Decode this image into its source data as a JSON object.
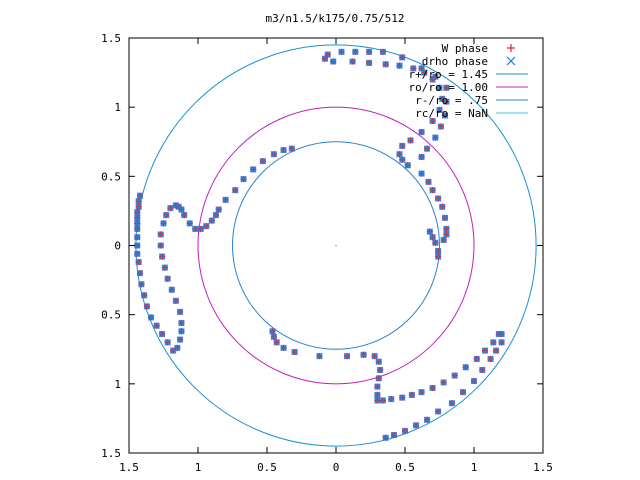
{
  "chart_data": {
    "type": "scatter",
    "title": "m3/n1.5/k175/0.75/512",
    "xlim": [
      -1.5,
      1.5
    ],
    "ylim": [
      -1.5,
      1.5
    ],
    "x_ticks": [
      -1.5,
      -1,
      -0.5,
      0,
      0.5,
      1,
      1.5
    ],
    "y_ticks": [
      -1.5,
      -1,
      -0.5,
      0,
      0.5,
      1,
      1.5
    ],
    "x_tick_labels": [
      "1.5",
      "1",
      "0.5",
      "0",
      "0.5",
      "1",
      "1.5"
    ],
    "y_tick_labels": [
      "1.5",
      "1",
      "0.5",
      "0",
      "0.5",
      "1",
      "1.5"
    ],
    "legend_position": "top-right",
    "legend": [
      {
        "label": "W phase",
        "marker": "+",
        "color": "#e0202a"
      },
      {
        "label": "drho phase",
        "marker": "x",
        "color": "#1f7fe0"
      },
      {
        "label": "r+/ro = 1.45",
        "marker": "line",
        "color": "#1a8fd4"
      },
      {
        "label": "ro/ro = 1.00",
        "marker": "line",
        "color": "#c020c0"
      },
      {
        "label": "r-/ro = .75",
        "marker": "line",
        "color": "#3080d0"
      },
      {
        "label": "rc/ro = NaN",
        "marker": "line",
        "color": "#40c0e0"
      }
    ],
    "circles": [
      {
        "r": 1.45,
        "color": "#1a8fd4"
      },
      {
        "r": 1.0,
        "color": "#c020c0"
      },
      {
        "r": 0.75,
        "color": "#3080d0"
      }
    ],
    "series": [
      {
        "name": "W phase",
        "points": [
          [
            -1.42,
            0.36
          ],
          [
            -1.43,
            0.32
          ],
          [
            -1.43,
            0.28
          ],
          [
            -1.44,
            0.24
          ],
          [
            -1.44,
            0.2
          ],
          [
            -1.44,
            0.16
          ],
          [
            -1.44,
            0.12
          ],
          [
            -1.44,
            0.06
          ],
          [
            -1.44,
            0.0
          ],
          [
            -1.44,
            -0.06
          ],
          [
            -1.43,
            -0.12
          ],
          [
            -1.42,
            -0.2
          ],
          [
            -1.41,
            -0.28
          ],
          [
            -1.39,
            -0.36
          ],
          [
            -1.37,
            -0.44
          ],
          [
            -1.34,
            -0.52
          ],
          [
            -1.3,
            -0.58
          ],
          [
            -1.26,
            -0.64
          ],
          [
            -1.22,
            -0.7
          ],
          [
            -1.18,
            -0.76
          ],
          [
            -1.14,
            0.28
          ],
          [
            -1.12,
            0.26
          ],
          [
            -1.1,
            0.22
          ],
          [
            -1.06,
            0.16
          ],
          [
            -1.02,
            0.12
          ],
          [
            -0.98,
            0.12
          ],
          [
            -0.94,
            0.14
          ],
          [
            -0.9,
            0.18
          ],
          [
            -0.87,
            0.22
          ],
          [
            -0.85,
            0.26
          ],
          [
            -0.8,
            0.33
          ],
          [
            -0.73,
            0.4
          ],
          [
            -0.67,
            0.48
          ],
          [
            -0.6,
            0.55
          ],
          [
            -0.53,
            0.61
          ],
          [
            -0.45,
            0.66
          ],
          [
            -0.38,
            0.69
          ],
          [
            -0.32,
            0.7
          ],
          [
            -1.16,
            0.29
          ],
          [
            -1.2,
            0.27
          ],
          [
            -1.23,
            0.22
          ],
          [
            -1.25,
            0.16
          ],
          [
            -1.27,
            0.08
          ],
          [
            -1.27,
            0.0
          ],
          [
            -1.26,
            -0.08
          ],
          [
            -1.24,
            -0.16
          ],
          [
            -1.22,
            -0.24
          ],
          [
            -1.19,
            -0.32
          ],
          [
            -1.16,
            -0.4
          ],
          [
            -1.13,
            -0.48
          ],
          [
            -1.12,
            -0.56
          ],
          [
            -1.12,
            -0.62
          ],
          [
            -1.13,
            -0.68
          ],
          [
            -1.15,
            -0.74
          ],
          [
            -0.46,
            -0.62
          ],
          [
            -0.45,
            -0.66
          ],
          [
            -0.43,
            -0.7
          ],
          [
            -0.38,
            -0.74
          ],
          [
            -0.3,
            -0.77
          ],
          [
            -0.12,
            -0.8
          ],
          [
            0.08,
            -0.8
          ],
          [
            0.2,
            -0.79
          ],
          [
            0.28,
            -0.8
          ],
          [
            0.31,
            -0.84
          ],
          [
            0.32,
            -0.9
          ],
          [
            0.31,
            -0.96
          ],
          [
            0.3,
            -1.02
          ],
          [
            0.3,
            -1.08
          ],
          [
            0.3,
            -1.12
          ],
          [
            0.34,
            -1.12
          ],
          [
            0.4,
            -1.11
          ],
          [
            0.48,
            -1.1
          ],
          [
            0.55,
            -1.08
          ],
          [
            0.62,
            -1.06
          ],
          [
            0.7,
            -1.03
          ],
          [
            0.78,
            -0.99
          ],
          [
            0.86,
            -0.94
          ],
          [
            0.94,
            -0.88
          ],
          [
            1.02,
            -0.82
          ],
          [
            1.08,
            -0.76
          ],
          [
            1.14,
            -0.7
          ],
          [
            1.18,
            -0.64
          ],
          [
            1.2,
            -0.64
          ],
          [
            1.2,
            -0.7
          ],
          [
            1.16,
            -0.76
          ],
          [
            1.12,
            -0.82
          ],
          [
            1.06,
            -0.9
          ],
          [
            1.0,
            -0.98
          ],
          [
            0.92,
            -1.06
          ],
          [
            0.84,
            -1.14
          ],
          [
            0.74,
            -1.2
          ],
          [
            0.66,
            -1.26
          ],
          [
            0.58,
            -1.3
          ],
          [
            0.5,
            -1.34
          ],
          [
            0.42,
            -1.37
          ],
          [
            0.36,
            -1.39
          ],
          [
            0.78,
            0.04
          ],
          [
            0.8,
            0.08
          ],
          [
            0.8,
            0.12
          ],
          [
            0.79,
            0.2
          ],
          [
            0.77,
            0.28
          ],
          [
            0.74,
            0.34
          ],
          [
            0.7,
            0.4
          ],
          [
            0.67,
            0.46
          ],
          [
            0.62,
            0.52
          ],
          [
            0.52,
            0.58
          ],
          [
            0.48,
            0.62
          ],
          [
            0.46,
            0.66
          ],
          [
            0.48,
            0.72
          ],
          [
            0.54,
            0.76
          ],
          [
            0.62,
            0.82
          ],
          [
            0.7,
            0.9
          ],
          [
            0.75,
            0.98
          ],
          [
            0.77,
            1.06
          ],
          [
            0.75,
            1.14
          ],
          [
            0.7,
            1.2
          ],
          [
            0.64,
            1.25
          ],
          [
            0.56,
            1.28
          ],
          [
            0.46,
            1.3
          ],
          [
            0.36,
            1.31
          ],
          [
            0.24,
            1.32
          ],
          [
            0.12,
            1.33
          ],
          [
            -0.02,
            1.33
          ],
          [
            -0.08,
            1.35
          ],
          [
            -0.06,
            1.38
          ],
          [
            0.04,
            1.4
          ],
          [
            0.14,
            1.4
          ],
          [
            0.24,
            1.4
          ],
          [
            0.34,
            1.4
          ],
          [
            0.48,
            1.36
          ],
          [
            0.62,
            1.28
          ],
          [
            0.72,
            1.22
          ],
          [
            0.8,
            1.14
          ],
          [
            0.8,
            1.04
          ],
          [
            0.79,
            0.94
          ],
          [
            0.76,
            0.86
          ],
          [
            0.72,
            0.78
          ],
          [
            0.66,
            0.7
          ],
          [
            0.62,
            0.64
          ],
          [
            0.74,
            -0.08
          ],
          [
            0.74,
            -0.04
          ],
          [
            0.72,
            0.02
          ],
          [
            0.7,
            0.06
          ],
          [
            0.68,
            0.1
          ]
        ]
      },
      {
        "name": "drho phase",
        "points": [
          [
            -1.42,
            0.36
          ],
          [
            -1.43,
            0.32
          ],
          [
            -1.43,
            0.28
          ],
          [
            -1.44,
            0.24
          ],
          [
            -1.44,
            0.2
          ],
          [
            -1.44,
            0.16
          ],
          [
            -1.44,
            0.12
          ],
          [
            -1.44,
            0.06
          ],
          [
            -1.44,
            0.0
          ],
          [
            -1.44,
            -0.06
          ],
          [
            -1.43,
            -0.12
          ],
          [
            -1.42,
            -0.2
          ],
          [
            -1.41,
            -0.28
          ],
          [
            -1.39,
            -0.36
          ],
          [
            -1.37,
            -0.44
          ],
          [
            -1.34,
            -0.52
          ],
          [
            -1.3,
            -0.58
          ],
          [
            -1.26,
            -0.64
          ],
          [
            -1.22,
            -0.7
          ],
          [
            -1.18,
            -0.76
          ],
          [
            -1.14,
            0.28
          ],
          [
            -1.12,
            0.26
          ],
          [
            -1.1,
            0.22
          ],
          [
            -1.06,
            0.16
          ],
          [
            -1.02,
            0.12
          ],
          [
            -0.98,
            0.12
          ],
          [
            -0.94,
            0.14
          ],
          [
            -0.9,
            0.18
          ],
          [
            -0.87,
            0.22
          ],
          [
            -0.85,
            0.26
          ],
          [
            -0.8,
            0.33
          ],
          [
            -0.73,
            0.4
          ],
          [
            -0.67,
            0.48
          ],
          [
            -0.6,
            0.55
          ],
          [
            -0.53,
            0.61
          ],
          [
            -0.45,
            0.66
          ],
          [
            -0.38,
            0.69
          ],
          [
            -0.32,
            0.7
          ],
          [
            -1.16,
            0.29
          ],
          [
            -1.2,
            0.27
          ],
          [
            -1.23,
            0.22
          ],
          [
            -1.25,
            0.16
          ],
          [
            -1.27,
            0.08
          ],
          [
            -1.27,
            0.0
          ],
          [
            -1.26,
            -0.08
          ],
          [
            -1.24,
            -0.16
          ],
          [
            -1.22,
            -0.24
          ],
          [
            -1.19,
            -0.32
          ],
          [
            -1.16,
            -0.4
          ],
          [
            -1.13,
            -0.48
          ],
          [
            -1.12,
            -0.56
          ],
          [
            -1.12,
            -0.62
          ],
          [
            -1.13,
            -0.68
          ],
          [
            -1.15,
            -0.74
          ],
          [
            -0.46,
            -0.62
          ],
          [
            -0.45,
            -0.66
          ],
          [
            -0.43,
            -0.7
          ],
          [
            -0.38,
            -0.74
          ],
          [
            -0.3,
            -0.77
          ],
          [
            -0.12,
            -0.8
          ],
          [
            0.08,
            -0.8
          ],
          [
            0.2,
            -0.79
          ],
          [
            0.28,
            -0.8
          ],
          [
            0.31,
            -0.84
          ],
          [
            0.32,
            -0.9
          ],
          [
            0.31,
            -0.96
          ],
          [
            0.3,
            -1.02
          ],
          [
            0.3,
            -1.08
          ],
          [
            0.3,
            -1.12
          ],
          [
            0.34,
            -1.12
          ],
          [
            0.4,
            -1.11
          ],
          [
            0.48,
            -1.1
          ],
          [
            0.55,
            -1.08
          ],
          [
            0.62,
            -1.06
          ],
          [
            0.7,
            -1.03
          ],
          [
            0.78,
            -0.99
          ],
          [
            0.86,
            -0.94
          ],
          [
            0.94,
            -0.88
          ],
          [
            1.02,
            -0.82
          ],
          [
            1.08,
            -0.76
          ],
          [
            1.14,
            -0.7
          ],
          [
            1.18,
            -0.64
          ],
          [
            1.2,
            -0.64
          ],
          [
            1.2,
            -0.7
          ],
          [
            1.16,
            -0.76
          ],
          [
            1.12,
            -0.82
          ],
          [
            1.06,
            -0.9
          ],
          [
            1.0,
            -0.98
          ],
          [
            0.92,
            -1.06
          ],
          [
            0.84,
            -1.14
          ],
          [
            0.74,
            -1.2
          ],
          [
            0.66,
            -1.26
          ],
          [
            0.58,
            -1.3
          ],
          [
            0.5,
            -1.34
          ],
          [
            0.42,
            -1.37
          ],
          [
            0.36,
            -1.39
          ],
          [
            0.78,
            0.04
          ],
          [
            0.8,
            0.08
          ],
          [
            0.8,
            0.12
          ],
          [
            0.79,
            0.2
          ],
          [
            0.77,
            0.28
          ],
          [
            0.74,
            0.34
          ],
          [
            0.7,
            0.4
          ],
          [
            0.67,
            0.46
          ],
          [
            0.62,
            0.52
          ],
          [
            0.52,
            0.58
          ],
          [
            0.48,
            0.62
          ],
          [
            0.46,
            0.66
          ],
          [
            0.48,
            0.72
          ],
          [
            0.54,
            0.76
          ],
          [
            0.62,
            0.82
          ],
          [
            0.7,
            0.9
          ],
          [
            0.75,
            0.98
          ],
          [
            0.77,
            1.06
          ],
          [
            0.75,
            1.14
          ],
          [
            0.7,
            1.2
          ],
          [
            0.64,
            1.25
          ],
          [
            0.56,
            1.28
          ],
          [
            0.46,
            1.3
          ],
          [
            0.36,
            1.31
          ],
          [
            0.24,
            1.32
          ],
          [
            0.12,
            1.33
          ],
          [
            -0.02,
            1.33
          ],
          [
            -0.08,
            1.35
          ],
          [
            -0.06,
            1.38
          ],
          [
            0.04,
            1.4
          ],
          [
            0.14,
            1.4
          ],
          [
            0.24,
            1.4
          ],
          [
            0.34,
            1.4
          ],
          [
            0.48,
            1.36
          ],
          [
            0.62,
            1.28
          ],
          [
            0.72,
            1.22
          ],
          [
            0.8,
            1.14
          ],
          [
            0.8,
            1.04
          ],
          [
            0.79,
            0.94
          ],
          [
            0.76,
            0.86
          ],
          [
            0.72,
            0.78
          ],
          [
            0.66,
            0.7
          ],
          [
            0.62,
            0.64
          ],
          [
            0.74,
            -0.08
          ],
          [
            0.74,
            -0.04
          ],
          [
            0.72,
            0.02
          ],
          [
            0.7,
            0.06
          ],
          [
            0.68,
            0.1
          ]
        ]
      }
    ]
  }
}
